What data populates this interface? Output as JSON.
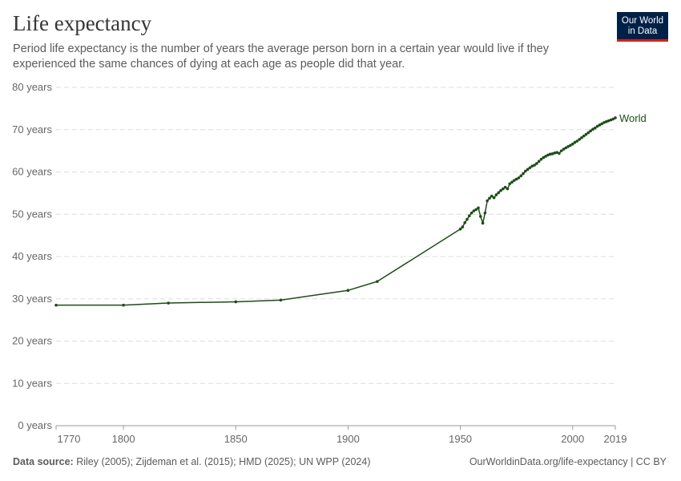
{
  "header": {
    "title": "Life expectancy",
    "subtitle": "Period life expectancy is the number of years the average person born in a certain year would live if they experienced the same chances of dying at each age as people did that year.",
    "logo_text": "Our World in Data"
  },
  "footer": {
    "source_label": "Data source:",
    "source_text": "Riley (2005); Zijdeman et al. (2015); HMD (2025); UN WPP (2024)",
    "credit": "OurWorldinData.org/life-expectancy | CC BY"
  },
  "colors": {
    "series": "#1d4d17",
    "grid": "#dddddd",
    "logo_bg": "#002147",
    "logo_accent": "#ce261e"
  },
  "chart_data": {
    "type": "line",
    "title": "Life expectancy",
    "xlim": [
      1770,
      2019
    ],
    "ylim": [
      0,
      80
    ],
    "x_ticks": [
      1770,
      1800,
      1850,
      1900,
      1950,
      2000,
      2019
    ],
    "y_ticks": [
      0,
      10,
      20,
      30,
      40,
      50,
      60,
      70,
      80
    ],
    "y_tick_labels": [
      "0 years",
      "10 years",
      "20 years",
      "30 years",
      "40 years",
      "50 years",
      "60 years",
      "70 years",
      "80 years"
    ],
    "grid": "horizontal dashed",
    "series": [
      {
        "name": "World",
        "color": "#1d4d17",
        "x": [
          1770,
          1800,
          1820,
          1850,
          1870,
          1900,
          1913,
          1950,
          1951,
          1952,
          1953,
          1954,
          1955,
          1956,
          1957,
          1958,
          1959,
          1960,
          1961,
          1962,
          1963,
          1964,
          1965,
          1966,
          1967,
          1968,
          1969,
          1970,
          1971,
          1972,
          1973,
          1974,
          1975,
          1976,
          1977,
          1978,
          1979,
          1980,
          1981,
          1982,
          1983,
          1984,
          1985,
          1986,
          1987,
          1988,
          1989,
          1990,
          1991,
          1992,
          1993,
          1994,
          1995,
          1996,
          1997,
          1998,
          1999,
          2000,
          2001,
          2002,
          2003,
          2004,
          2005,
          2006,
          2007,
          2008,
          2009,
          2010,
          2011,
          2012,
          2013,
          2014,
          2015,
          2016,
          2017,
          2018,
          2019
        ],
        "y": [
          28.5,
          28.5,
          29.0,
          29.3,
          29.7,
          32.0,
          34.1,
          46.5,
          47.0,
          48.0,
          48.8,
          49.6,
          50.3,
          50.8,
          51.1,
          51.5,
          49.5,
          47.9,
          50.3,
          53.2,
          53.8,
          54.3,
          53.9,
          54.6,
          55.1,
          55.6,
          56.0,
          56.4,
          56.0,
          57.2,
          57.6,
          58.0,
          58.3,
          58.6,
          59.1,
          59.6,
          60.2,
          60.6,
          61.0,
          61.4,
          61.6,
          62.0,
          62.5,
          63.0,
          63.4,
          63.7,
          64.0,
          64.2,
          64.3,
          64.5,
          64.6,
          64.4,
          65.0,
          65.4,
          65.7,
          66.0,
          66.3,
          66.6,
          67.0,
          67.3,
          67.7,
          68.1,
          68.5,
          68.9,
          69.3,
          69.7,
          70.1,
          70.4,
          70.8,
          71.1,
          71.4,
          71.7,
          71.9,
          72.1,
          72.3,
          72.5,
          72.8
        ]
      }
    ]
  }
}
